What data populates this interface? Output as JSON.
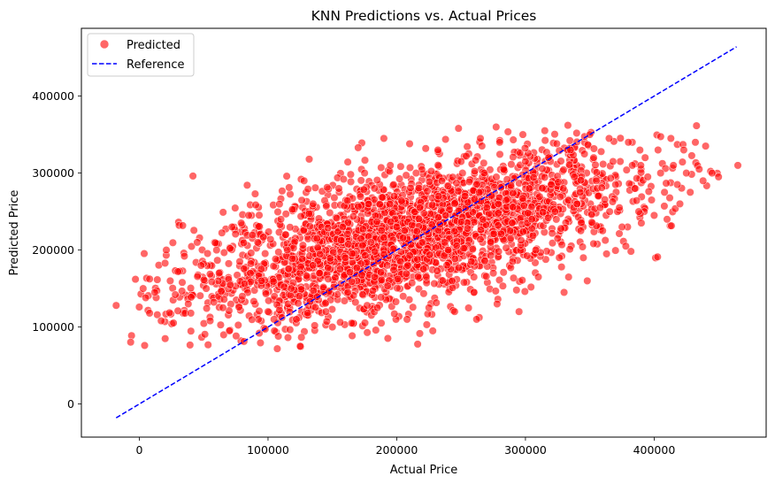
{
  "chart_data": {
    "type": "scatter",
    "title": "KNN Predictions vs. Actual Prices",
    "xlabel": "Actual Price",
    "ylabel": "Predicted Price",
    "xlim": [
      -45000,
      487000
    ],
    "ylim": [
      -43000,
      488000
    ],
    "xticks": [
      0,
      100000,
      200000,
      300000,
      400000
    ],
    "xtick_labels": [
      "0",
      "100000",
      "200000",
      "300000",
      "400000"
    ],
    "yticks": [
      0,
      100000,
      200000,
      300000,
      400000
    ],
    "ytick_labels": [
      "0",
      "100000",
      "200000",
      "300000",
      "400000"
    ],
    "grid": false,
    "legend_position": "top-left",
    "legend": [
      "Predicted",
      "Reference"
    ],
    "series": [
      {
        "name": "Predicted",
        "kind": "scatter",
        "color": "#ff0000",
        "opacity": 0.6,
        "description": "dense cloud of points, approx. regression band",
        "points": [
          [
            -18000,
            128000
          ],
          [
            -3000,
            162000
          ],
          [
            3000,
            150000
          ],
          [
            5000,
            138000
          ],
          [
            8000,
            118000
          ],
          [
            12000,
            145000
          ],
          [
            14000,
            116000
          ],
          [
            17000,
            108000
          ],
          [
            20000,
            183000
          ],
          [
            21000,
            200000
          ],
          [
            24000,
            160000
          ],
          [
            28000,
            142000
          ],
          [
            30000,
            172000
          ],
          [
            35000,
            192000
          ],
          [
            38000,
            130000
          ],
          [
            40000,
            118000
          ],
          [
            45000,
            210000
          ],
          [
            48000,
            180000
          ],
          [
            52000,
            150000
          ],
          [
            55000,
            108000
          ],
          [
            60000,
            200000
          ],
          [
            62000,
            170000
          ],
          [
            65000,
            125000
          ],
          [
            70000,
            95000
          ],
          [
            72000,
            230000
          ],
          [
            78000,
            185000
          ],
          [
            80000,
            140000
          ],
          [
            85000,
            245000
          ],
          [
            90000,
            273000
          ],
          [
            92000,
            210000
          ],
          [
            95000,
            160000
          ],
          [
            100000,
            120000
          ],
          [
            105000,
            95000
          ],
          [
            108000,
            88000
          ],
          [
            110000,
            240000
          ],
          [
            115000,
            200000
          ],
          [
            118000,
            150000
          ],
          [
            122000,
            110000
          ],
          [
            125000,
            75000
          ],
          [
            128000,
            290000
          ],
          [
            132000,
            318000
          ],
          [
            135000,
            260000
          ],
          [
            138000,
            215000
          ],
          [
            140000,
            170000
          ],
          [
            145000,
            120000
          ],
          [
            150000,
            100000
          ],
          [
            155000,
            280000
          ],
          [
            158000,
            230000
          ],
          [
            160000,
            190000
          ],
          [
            162000,
            145000
          ],
          [
            165000,
            105000
          ],
          [
            170000,
            333000
          ],
          [
            175000,
            300000
          ],
          [
            178000,
            260000
          ],
          [
            180000,
            210000
          ],
          [
            183000,
            165000
          ],
          [
            185000,
            125000
          ],
          [
            188000,
            105000
          ],
          [
            190000,
            345000
          ],
          [
            195000,
            310000
          ],
          [
            198000,
            270000
          ],
          [
            200000,
            230000
          ],
          [
            203000,
            185000
          ],
          [
            205000,
            140000
          ],
          [
            208000,
            110000
          ],
          [
            210000,
            338000
          ],
          [
            215000,
            300000
          ],
          [
            218000,
            255000
          ],
          [
            220000,
            210000
          ],
          [
            223000,
            165000
          ],
          [
            225000,
            125000
          ],
          [
            228000,
            95000
          ],
          [
            232000,
            330000
          ],
          [
            235000,
            290000
          ],
          [
            238000,
            245000
          ],
          [
            240000,
            200000
          ],
          [
            243000,
            160000
          ],
          [
            245000,
            120000
          ],
          [
            248000,
            358000
          ],
          [
            250000,
            315000
          ],
          [
            253000,
            270000
          ],
          [
            255000,
            228000
          ],
          [
            258000,
            185000
          ],
          [
            260000,
            145000
          ],
          [
            262000,
            110000
          ],
          [
            265000,
            345000
          ],
          [
            268000,
            300000
          ],
          [
            270000,
            255000
          ],
          [
            273000,
            210000
          ],
          [
            275000,
            170000
          ],
          [
            278000,
            130000
          ],
          [
            280000,
            340000
          ],
          [
            283000,
            305000
          ],
          [
            285000,
            265000
          ],
          [
            288000,
            225000
          ],
          [
            290000,
            185000
          ],
          [
            293000,
            148000
          ],
          [
            295000,
            120000
          ],
          [
            298000,
            350000
          ],
          [
            300000,
            315000
          ],
          [
            303000,
            280000
          ],
          [
            305000,
            240000
          ],
          [
            308000,
            200000
          ],
          [
            310000,
            165000
          ],
          [
            315000,
            355000
          ],
          [
            318000,
            320000
          ],
          [
            320000,
            285000
          ],
          [
            323000,
            250000
          ],
          [
            325000,
            215000
          ],
          [
            328000,
            178000
          ],
          [
            330000,
            145000
          ],
          [
            333000,
            362000
          ],
          [
            335000,
            330000
          ],
          [
            338000,
            295000
          ],
          [
            340000,
            260000
          ],
          [
            343000,
            225000
          ],
          [
            345000,
            190000
          ],
          [
            348000,
            160000
          ],
          [
            350000,
            350000
          ],
          [
            353000,
            320000
          ],
          [
            355000,
            290000
          ],
          [
            358000,
            255000
          ],
          [
            360000,
            225000
          ],
          [
            363000,
            195000
          ],
          [
            365000,
            345000
          ],
          [
            368000,
            315000
          ],
          [
            370000,
            285000
          ],
          [
            373000,
            255000
          ],
          [
            375000,
            230000
          ],
          [
            378000,
            205000
          ],
          [
            380000,
            340000
          ],
          [
            383000,
            310000
          ],
          [
            385000,
            280000
          ],
          [
            388000,
            250000
          ],
          [
            390000,
            235000
          ],
          [
            393000,
            320000
          ],
          [
            395000,
            295000
          ],
          [
            398000,
            265000
          ],
          [
            400000,
            245000
          ],
          [
            403000,
            330000
          ],
          [
            405000,
            300000
          ],
          [
            408000,
            275000
          ],
          [
            410000,
            240000
          ],
          [
            413000,
            345000
          ],
          [
            415000,
            310000
          ],
          [
            418000,
            285000
          ],
          [
            420000,
            260000
          ],
          [
            423000,
            330000
          ],
          [
            425000,
            300000
          ],
          [
            428000,
            275000
          ],
          [
            432000,
            340000
          ],
          [
            435000,
            305000
          ],
          [
            438000,
            290000
          ],
          [
            440000,
            335000
          ],
          [
            445000,
            300000
          ],
          [
            450000,
            295000
          ],
          [
            465000,
            310000
          ]
        ]
      },
      {
        "name": "Reference",
        "kind": "line",
        "color": "#0000ff",
        "dash": "dashed",
        "x": [
          -18000,
          464000
        ],
        "y": [
          -18000,
          464000
        ]
      }
    ]
  }
}
